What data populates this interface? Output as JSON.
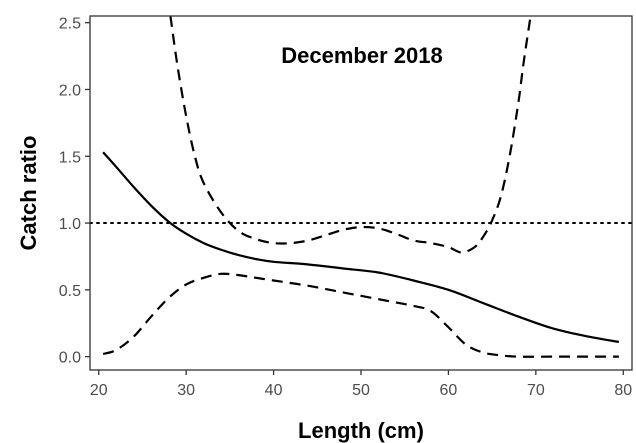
{
  "chart_data": {
    "type": "line",
    "title": "",
    "annotation": "December 2018",
    "xlabel": "Length (cm)",
    "ylabel": "Catch ratio",
    "xlim": [
      19,
      81
    ],
    "ylim": [
      -0.1,
      2.55
    ],
    "xticks": [
      20,
      30,
      40,
      50,
      60,
      70,
      80
    ],
    "yticks": [
      0.0,
      0.5,
      1.0,
      1.5,
      2.0,
      2.5
    ],
    "ytick_labels": [
      "0.0",
      "0.5",
      "1.0",
      "1.5",
      "2.0",
      "2.5"
    ],
    "reference_line": {
      "y": 1.0,
      "style": "dotted"
    },
    "grid": false,
    "series": [
      {
        "role": "estimate",
        "style": "solid",
        "x": [
          20.5,
          22,
          24,
          26,
          28,
          30,
          32,
          34,
          36,
          38,
          40,
          44,
          48,
          52,
          56,
          60,
          64,
          68,
          72,
          76,
          79.5
        ],
        "y": [
          1.53,
          1.42,
          1.27,
          1.13,
          1.01,
          0.92,
          0.85,
          0.8,
          0.76,
          0.73,
          0.71,
          0.69,
          0.66,
          0.63,
          0.57,
          0.5,
          0.4,
          0.3,
          0.21,
          0.15,
          0.11
        ]
      },
      {
        "role": "upper_ci",
        "style": "dashed",
        "x": [
          28.2,
          29,
          30,
          31,
          32,
          34,
          36,
          38,
          40,
          42,
          44,
          46,
          48,
          50,
          52,
          54,
          56,
          58,
          60,
          61.5,
          63,
          64,
          65,
          66,
          67,
          68,
          68.6,
          69.4
        ],
        "y": [
          2.55,
          2.18,
          1.8,
          1.5,
          1.3,
          1.08,
          0.94,
          0.88,
          0.85,
          0.85,
          0.87,
          0.91,
          0.95,
          0.97,
          0.96,
          0.92,
          0.87,
          0.85,
          0.82,
          0.78,
          0.82,
          0.9,
          1.02,
          1.2,
          1.5,
          1.9,
          2.2,
          2.55
        ]
      },
      {
        "role": "lower_ci",
        "style": "dashed",
        "x": [
          20.5,
          22,
          24,
          26,
          28,
          30,
          32,
          34,
          36,
          38,
          40,
          44,
          48,
          52,
          56,
          58,
          60,
          62,
          64,
          66,
          68,
          72,
          76,
          79.5
        ],
        "y": [
          0.02,
          0.05,
          0.15,
          0.3,
          0.44,
          0.54,
          0.59,
          0.62,
          0.61,
          0.59,
          0.57,
          0.53,
          0.48,
          0.43,
          0.38,
          0.34,
          0.22,
          0.09,
          0.03,
          0.01,
          0.0,
          0.0,
          0.0,
          0.0
        ]
      }
    ]
  }
}
